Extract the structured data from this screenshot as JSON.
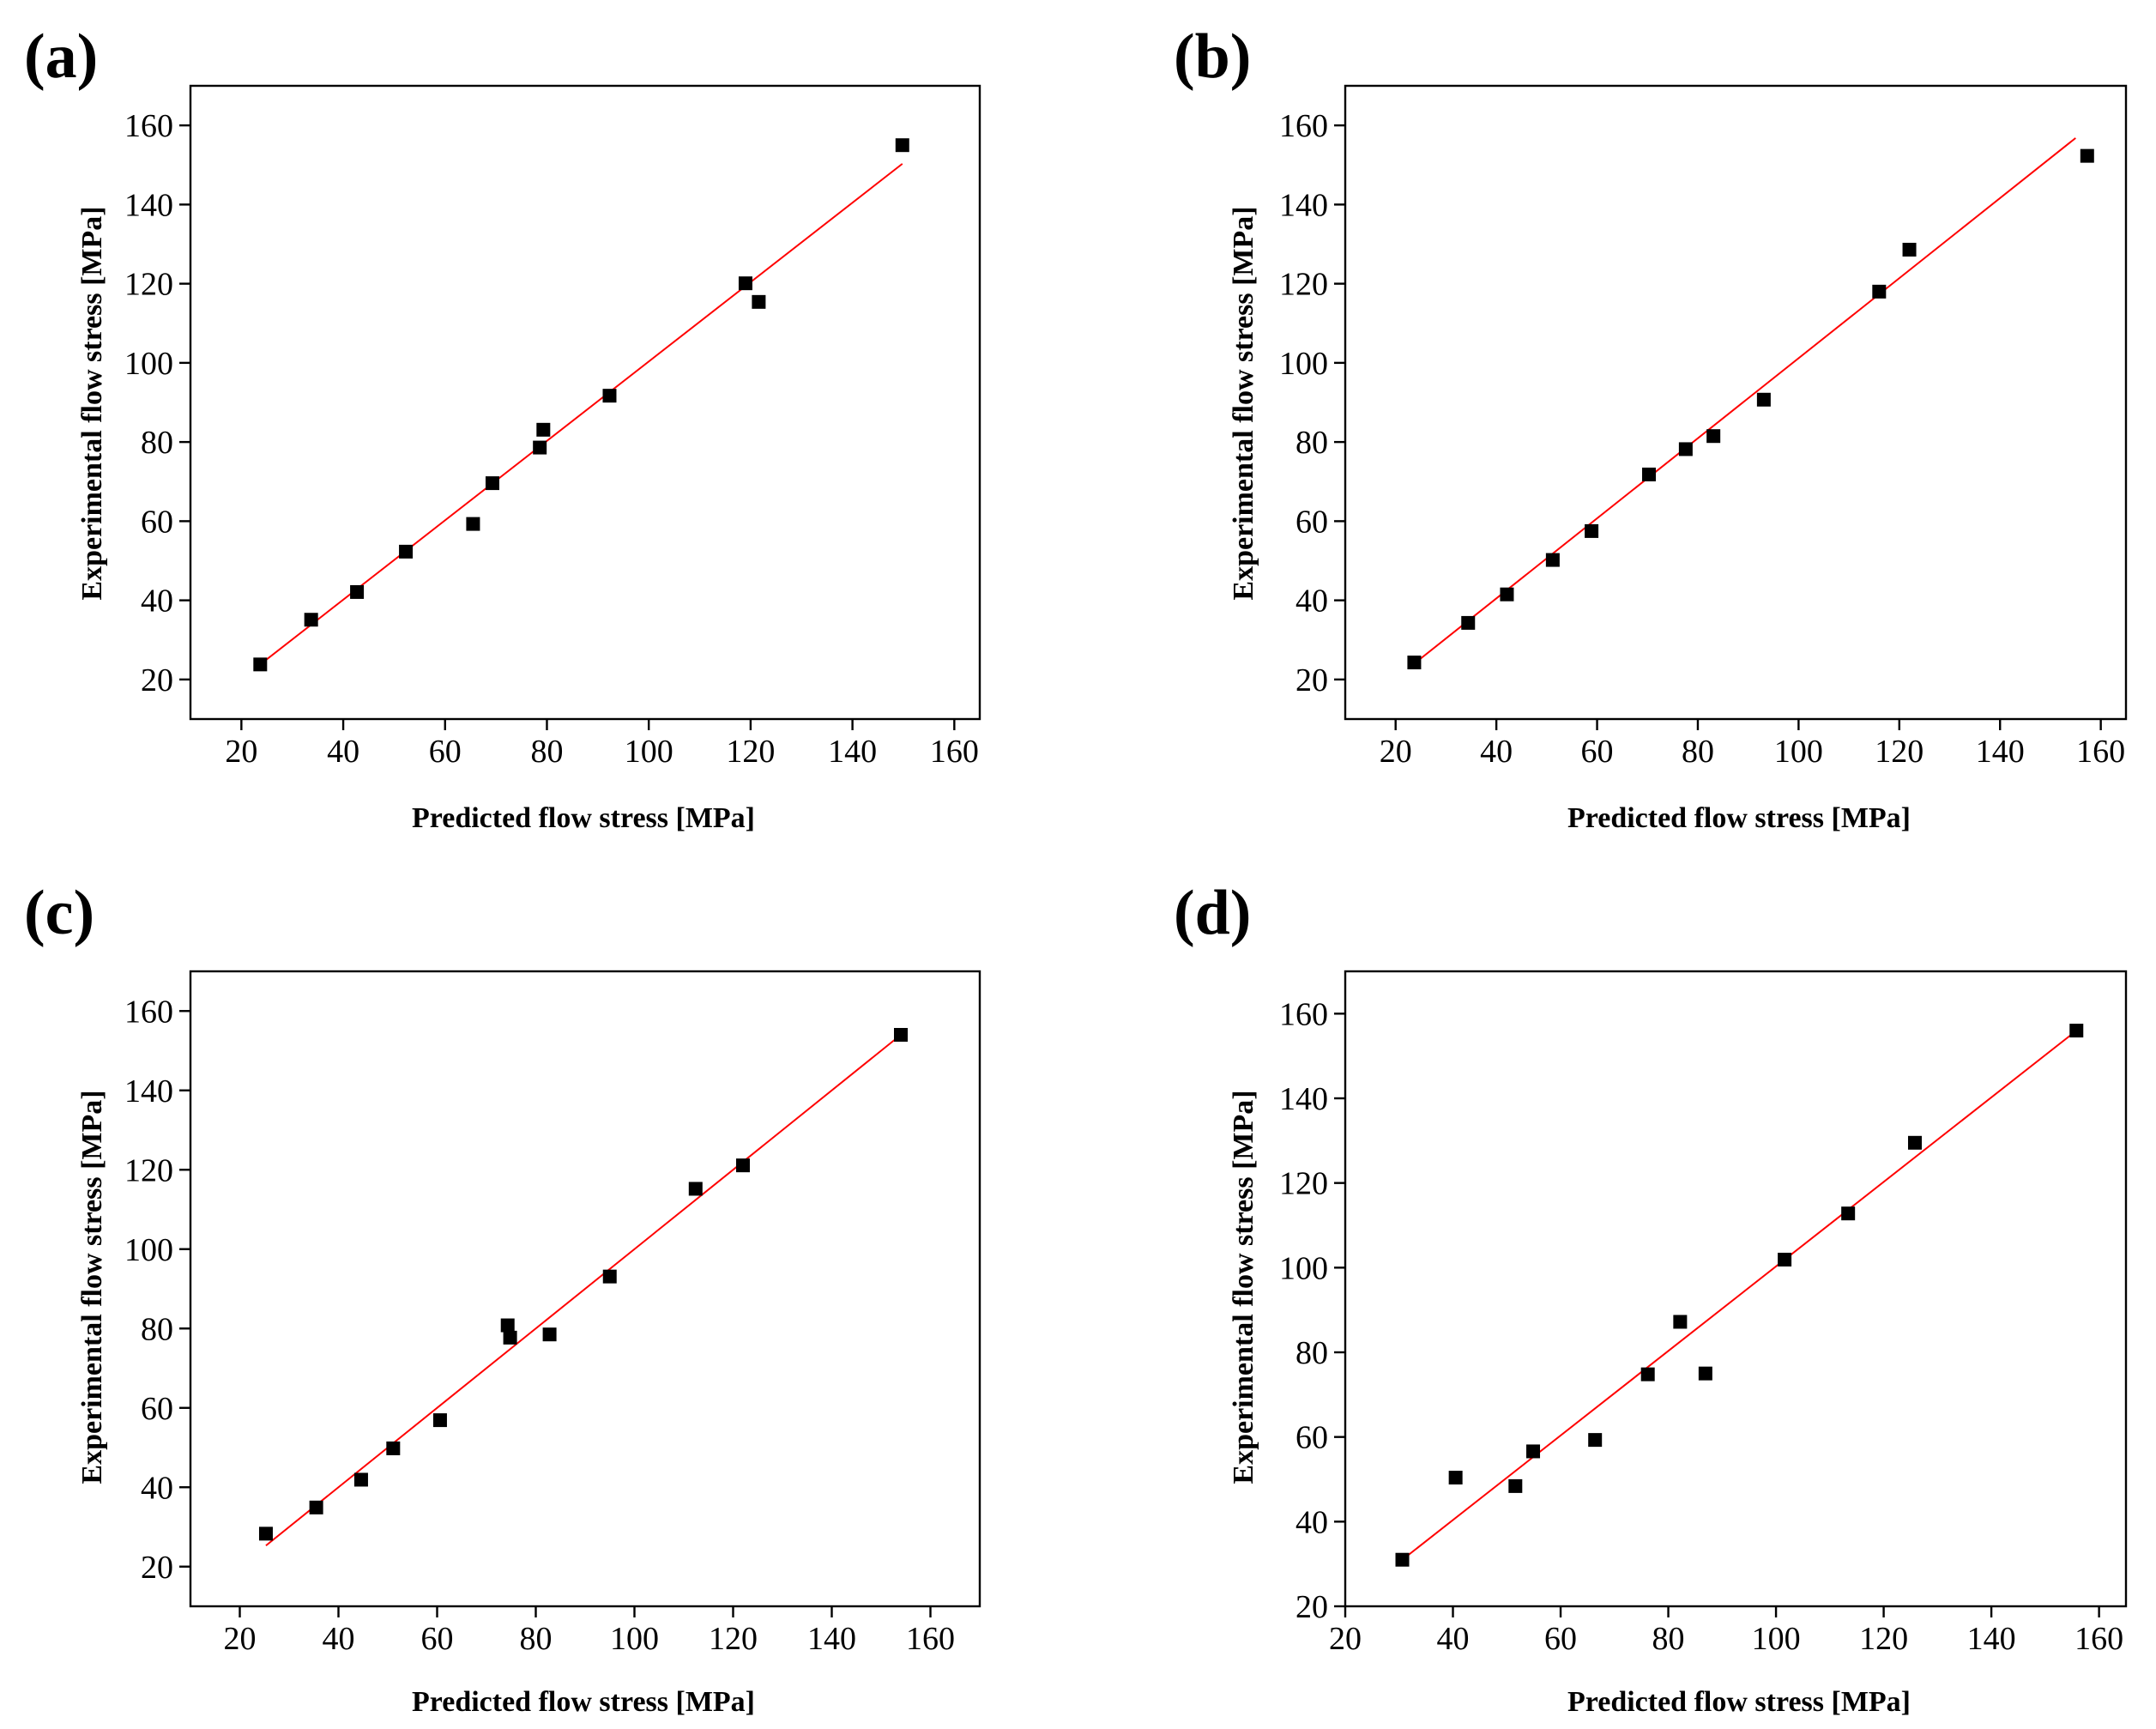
{
  "colors": {
    "marker": "#000000",
    "fit_line": "#ff0000",
    "axis": "#000000",
    "background": "#ffffff"
  },
  "chart_data": [
    {
      "panel": "(a)",
      "type": "scatter",
      "xlabel": "Predicted flow stress [MPa]",
      "ylabel": "Experimental flow stress [MPa]",
      "xlim": [
        10,
        165
      ],
      "ylim": [
        10,
        170
      ],
      "xticks": [
        20,
        40,
        60,
        80,
        100,
        120,
        140,
        160
      ],
      "yticks": [
        20,
        40,
        60,
        80,
        100,
        120,
        140,
        160
      ],
      "points": [
        [
          23.7,
          23.8
        ],
        [
          33.7,
          35.1
        ],
        [
          42.7,
          42.1
        ],
        [
          52.3,
          52.3
        ],
        [
          65.5,
          59.3
        ],
        [
          69.3,
          69.6
        ],
        [
          78.6,
          78.6
        ],
        [
          79.3,
          83.1
        ],
        [
          92.3,
          91.7
        ],
        [
          119.0,
          120.1
        ],
        [
          121.6,
          115.4
        ],
        [
          149.8,
          155.0
        ]
      ],
      "fit_line": [
        [
          23.7,
          23.8
        ],
        [
          149.8,
          150.3
        ]
      ]
    },
    {
      "panel": "(b)",
      "type": "scatter",
      "xlabel": "Predicted flow stress [MPa]",
      "ylabel": "Experimental flow stress [MPa]",
      "xlim": [
        10,
        165
      ],
      "ylim": [
        10,
        170
      ],
      "xticks": [
        20,
        40,
        60,
        80,
        100,
        120,
        140,
        160
      ],
      "yticks": [
        20,
        40,
        60,
        80,
        100,
        120,
        140,
        160
      ],
      "points": [
        [
          23.7,
          24.3
        ],
        [
          34.4,
          34.3
        ],
        [
          42.1,
          41.5
        ],
        [
          51.2,
          50.2
        ],
        [
          58.9,
          57.5
        ],
        [
          70.3,
          71.8
        ],
        [
          77.6,
          78.2
        ],
        [
          83.1,
          81.5
        ],
        [
          93.1,
          90.7
        ],
        [
          116.0,
          118.0
        ],
        [
          122.0,
          128.6
        ],
        [
          157.3,
          152.3
        ]
      ],
      "fit_line": [
        [
          23.7,
          24.0
        ],
        [
          155.0,
          156.8
        ]
      ]
    },
    {
      "panel": "(c)",
      "type": "scatter",
      "xlabel": "Predicted flow stress [MPa]",
      "ylabel": "Experimental flow stress [MPa]",
      "xlim": [
        10,
        170
      ],
      "ylim": [
        10,
        170
      ],
      "xticks": [
        20,
        40,
        60,
        80,
        100,
        120,
        140,
        160
      ],
      "yticks": [
        20,
        40,
        60,
        80,
        100,
        120,
        140,
        160
      ],
      "points": [
        [
          25.3,
          28.3
        ],
        [
          35.5,
          34.9
        ],
        [
          44.6,
          41.9
        ],
        [
          51.1,
          49.8
        ],
        [
          60.6,
          56.9
        ],
        [
          74.3,
          80.8
        ],
        [
          74.8,
          77.7
        ],
        [
          82.8,
          78.5
        ],
        [
          95.0,
          93.1
        ],
        [
          112.4,
          115.2
        ],
        [
          122.0,
          121.1
        ],
        [
          154.0,
          154.0
        ]
      ],
      "fit_line": [
        [
          25.3,
          25.3
        ],
        [
          154.0,
          154.0
        ]
      ]
    },
    {
      "panel": "(d)",
      "type": "scatter",
      "xlabel": "Predicted flow stress [MPa]",
      "ylabel": "Experimental flow stress [MPa]",
      "xlim": [
        20,
        165
      ],
      "ylim": [
        20,
        170
      ],
      "xticks": [
        20,
        40,
        60,
        80,
        100,
        120,
        140,
        160
      ],
      "yticks": [
        20,
        40,
        60,
        80,
        100,
        120,
        140,
        160
      ],
      "points": [
        [
          30.6,
          31.0
        ],
        [
          40.5,
          50.4
        ],
        [
          51.6,
          48.4
        ],
        [
          54.9,
          56.6
        ],
        [
          66.4,
          59.3
        ],
        [
          76.2,
          74.8
        ],
        [
          82.2,
          87.2
        ],
        [
          86.9,
          75.0
        ],
        [
          101.6,
          101.9
        ],
        [
          113.4,
          112.8
        ],
        [
          125.8,
          129.5
        ],
        [
          155.8,
          156.0
        ]
      ],
      "fit_line": [
        [
          30.6,
          31.0
        ],
        [
          155.8,
          156.0
        ]
      ]
    }
  ]
}
